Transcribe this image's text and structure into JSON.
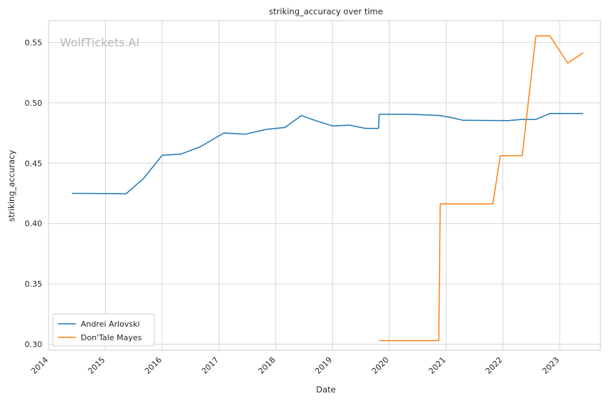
{
  "chart_data": {
    "type": "line",
    "title": "striking_accuracy over time",
    "xlabel": "Date",
    "ylabel": "striking_accuracy",
    "watermark": "WolfTickets.AI",
    "xlim": [
      "2014-01-01",
      "2023-09-20"
    ],
    "ylim": [
      0.295,
      0.568
    ],
    "x_ticks": [
      "2014-01-01",
      "2015-01-01",
      "2016-01-01",
      "2017-01-01",
      "2018-01-01",
      "2019-01-01",
      "2020-01-01",
      "2021-01-01",
      "2022-01-01",
      "2023-01-01"
    ],
    "x_tick_labels": [
      "2014",
      "2015",
      "2016",
      "2017",
      "2018",
      "2019",
      "2020",
      "2021",
      "2022",
      "2023"
    ],
    "y_ticks": [
      0.3,
      0.35,
      0.4,
      0.45,
      0.5,
      0.55
    ],
    "y_tick_labels": [
      "0.30",
      "0.35",
      "0.40",
      "0.45",
      "0.50",
      "0.55"
    ],
    "grid": true,
    "legend_position": "lower-left",
    "series": [
      {
        "name": "Andrei Arlovski",
        "color": "#1f77b4",
        "points": [
          [
            "2014-06-01",
            0.425
          ],
          [
            "2015-05-15",
            0.4247
          ],
          [
            "2015-09-05",
            0.4375
          ],
          [
            "2016-01-01",
            0.4565
          ],
          [
            "2016-05-01",
            0.4575
          ],
          [
            "2016-09-01",
            0.4635
          ],
          [
            "2017-02-01",
            0.475
          ],
          [
            "2017-06-20",
            0.474
          ],
          [
            "2017-11-01",
            0.478
          ],
          [
            "2018-03-01",
            0.4795
          ],
          [
            "2018-06-15",
            0.4895
          ],
          [
            "2018-09-20",
            0.485
          ],
          [
            "2019-01-01",
            0.4808
          ],
          [
            "2019-04-20",
            0.4815
          ],
          [
            "2019-08-01",
            0.4788
          ],
          [
            "2019-10-24",
            0.4788
          ],
          [
            "2019-10-28",
            0.4905
          ],
          [
            "2020-05-20",
            0.4905
          ],
          [
            "2020-11-20",
            0.4895
          ],
          [
            "2021-02-01",
            0.4878
          ],
          [
            "2021-04-20",
            0.4855
          ],
          [
            "2022-02-01",
            0.4852
          ],
          [
            "2022-05-01",
            0.4862
          ],
          [
            "2022-08-01",
            0.4862
          ],
          [
            "2022-11-01",
            0.4912
          ],
          [
            "2023-06-01",
            0.4912
          ]
        ]
      },
      {
        "name": "Don'Tale Mayes",
        "color": "#ff7f0e",
        "points": [
          [
            "2019-10-28",
            0.303
          ],
          [
            "2020-11-14",
            0.303
          ],
          [
            "2020-11-24",
            0.4162
          ],
          [
            "2021-10-28",
            0.4162
          ],
          [
            "2021-12-15",
            0.4562
          ],
          [
            "2022-05-05",
            0.4562
          ],
          [
            "2022-08-01",
            0.5555
          ],
          [
            "2022-10-30",
            0.5555
          ],
          [
            "2023-02-22",
            0.5328
          ],
          [
            "2023-06-01",
            0.5415
          ]
        ]
      }
    ]
  }
}
